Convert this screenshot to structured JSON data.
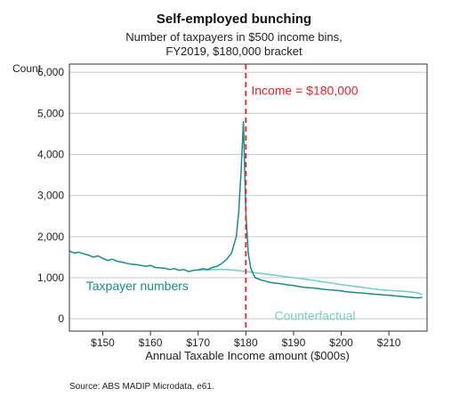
{
  "chart_data": {
    "type": "line",
    "title": "Self-employed bunching",
    "subtitle": [
      "Number of taxpayers in $500 income bins,",
      "FY2019, $180,000 bracket"
    ],
    "ylabel": "Count",
    "xlabel": "Annual Taxable Income amount ($000s)",
    "xlim": [
      143,
      218
    ],
    "ylim": [
      -300,
      6200
    ],
    "x_ticks": [
      150,
      160,
      170,
      180,
      190,
      200,
      210
    ],
    "x_tick_labels": [
      "$150",
      "$160",
      "$170",
      "$180",
      "$190",
      "$200",
      "$210"
    ],
    "y_ticks": [
      0,
      1000,
      2000,
      3000,
      4000,
      5000,
      6000
    ],
    "y_tick_labels": [
      "0",
      "1,000",
      "2,000",
      "3,000",
      "4,000",
      "5,000",
      "6,000"
    ],
    "grid": true,
    "annotation": {
      "x": 180,
      "label": "Income = $180,000",
      "color": "#e8262b"
    },
    "series": [
      {
        "name": "Taxpayer numbers",
        "color": "#1b8a86",
        "x": [
          143,
          144,
          145,
          146,
          147,
          148,
          149,
          150,
          151,
          152,
          153,
          154,
          155,
          156,
          157,
          158,
          159,
          160,
          161,
          162,
          163,
          164,
          165,
          166,
          167,
          168,
          169,
          170,
          171,
          172,
          173,
          174,
          175,
          176,
          177,
          178,
          178.5,
          179,
          179.5,
          180,
          180.5,
          181,
          181.5,
          182,
          183,
          184,
          185,
          186,
          187,
          188,
          189,
          190,
          191,
          192,
          193,
          194,
          195,
          196,
          197,
          198,
          199,
          200,
          201,
          202,
          203,
          204,
          205,
          206,
          207,
          208,
          209,
          210,
          211,
          212,
          213,
          214,
          215,
          216,
          217
        ],
        "values": [
          1650,
          1600,
          1620,
          1580,
          1550,
          1500,
          1530,
          1470,
          1420,
          1450,
          1400,
          1380,
          1350,
          1330,
          1320,
          1300,
          1280,
          1300,
          1250,
          1240,
          1230,
          1200,
          1220,
          1180,
          1200,
          1150,
          1180,
          1190,
          1220,
          1200,
          1250,
          1280,
          1350,
          1450,
          1600,
          2000,
          2600,
          3600,
          4800,
          2600,
          1600,
          1250,
          1100,
          1000,
          950,
          920,
          890,
          870,
          860,
          840,
          820,
          810,
          790,
          770,
          760,
          750,
          740,
          720,
          710,
          700,
          690,
          680,
          660,
          650,
          640,
          630,
          620,
          610,
          600,
          590,
          580,
          570,
          560,
          550,
          540,
          530,
          520,
          510,
          520
        ]
      },
      {
        "name": "Counterfactual",
        "color": "#78cfcb",
        "x": [
          170,
          172,
          174,
          176,
          178,
          180,
          182,
          184,
          186,
          188,
          190,
          192,
          194,
          196,
          198,
          200,
          202,
          204,
          206,
          208,
          210,
          212,
          214,
          216,
          217
        ],
        "values": [
          1180,
          1190,
          1200,
          1200,
          1180,
          1150,
          1120,
          1090,
          1060,
          1030,
          1000,
          970,
          940,
          900,
          870,
          830,
          800,
          770,
          740,
          710,
          690,
          680,
          660,
          630,
          590
        ]
      }
    ],
    "source": "Source: ABS MADIP Microdata, e61."
  }
}
